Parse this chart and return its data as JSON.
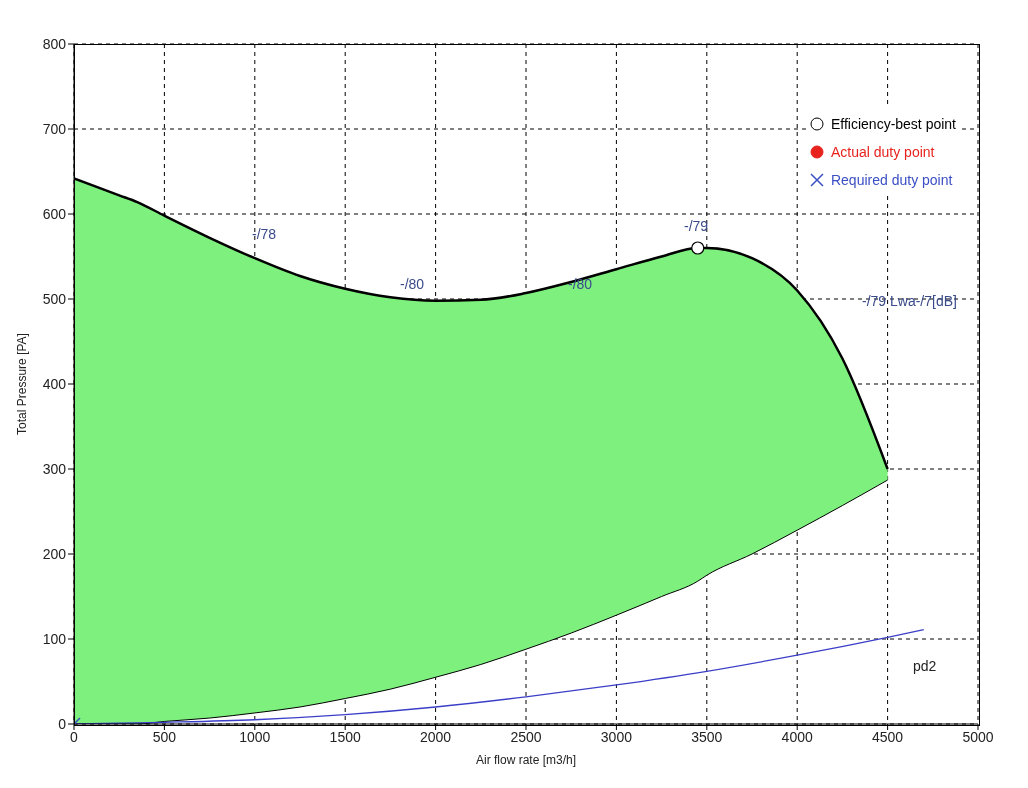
{
  "chart_data": {
    "type": "line",
    "xlabel": "Air flow rate [m3/h]",
    "ylabel": "Total Pressure [PA]",
    "xlim": [
      0,
      5000
    ],
    "xticks": [
      0,
      500,
      1000,
      1500,
      2000,
      2500,
      3000,
      3500,
      4000,
      4500,
      5000
    ],
    "ylim": [
      0,
      800
    ],
    "yticks": [
      0,
      100,
      200,
      300,
      400,
      500,
      600,
      700,
      800
    ],
    "grid": true,
    "legend": "top right",
    "line_style": "solid",
    "series": [
      {
        "type": "area",
        "color": "#7ef07e",
        "x": [
          0,
          250,
          350,
          500,
          750,
          1000,
          1250,
          1500,
          1750,
          2000,
          2250,
          2500,
          2750,
          3000,
          3250,
          3450,
          3500,
          3750,
          4000,
          4250,
          4500
        ],
        "values": [
          642,
          622,
          614,
          598,
          572,
          548,
          527,
          512,
          502,
          498,
          499,
          507,
          520,
          535,
          550,
          560,
          560,
          548,
          510,
          430,
          300
        ]
      },
      {
        "color": "#000000",
        "x": [
          0,
          250,
          350,
          500,
          750,
          1000,
          1250,
          1500,
          1750,
          2000,
          2250,
          2500,
          2750,
          3000,
          3250,
          3450,
          3500,
          3750,
          4000,
          4250,
          4500
        ],
        "values": [
          0,
          0,
          0,
          3,
          7,
          13,
          20,
          30,
          41,
          55,
          70,
          88,
          107,
          128,
          150,
          168,
          175,
          200,
          228,
          257,
          287
        ]
      },
      {
        "color": "#3b3fc8",
        "x": [
          0,
          500,
          1000,
          1500,
          2000,
          2500,
          3000,
          3500,
          4000,
          4500,
          4700
        ],
        "values": [
          0,
          2,
          5,
          11,
          20,
          32,
          46,
          62,
          81,
          102,
          111
        ]
      },
      {
        "type": "scatter",
        "name": "Efficiency-best point",
        "color": "#000000",
        "marker": "circle",
        "x": [
          3450
        ],
        "values": [
          560
        ]
      },
      {
        "type": "scatter",
        "name": "Actual duty point",
        "color": "#e8231e",
        "marker": "circle"
      },
      {
        "type": "scatter",
        "name": "Required duty point",
        "color": "#3b4fc4",
        "marker": "cross",
        "x": [
          0
        ],
        "values": [
          0
        ]
      }
    ],
    "annotations": [
      "-/78",
      "-/80",
      "-/80",
      "-/79",
      "-/79 Lwa-/7[dB]",
      "pd2"
    ]
  }
}
